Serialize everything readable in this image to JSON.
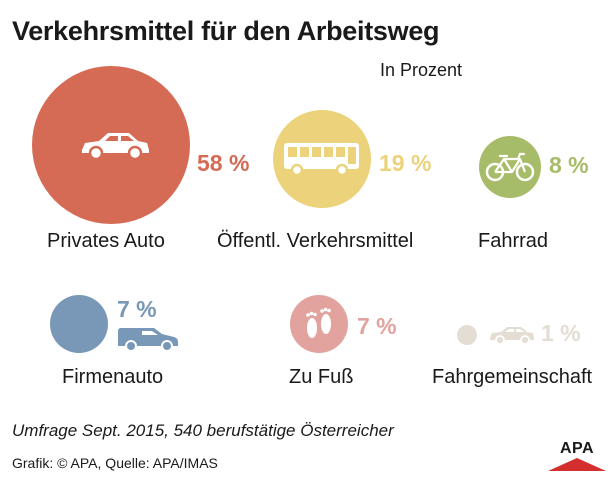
{
  "title": "Verkehrsmittel für den Arbeitsweg",
  "subtitle": "In Prozent",
  "colors": {
    "privates_auto": "#d66b55",
    "oeffentlich": "#ecd27a",
    "fahrrad": "#a7bc68",
    "firmenauto": "#7997b7",
    "zu_fuss": "#e2a39e",
    "fahrgemeinschaft": "#e3ddd3",
    "icon": "#ffffff"
  },
  "chart_data": {
    "type": "bubble",
    "title": "Verkehrsmittel für den Arbeitsweg",
    "subtitle": "In Prozent",
    "unit": "%",
    "categories": [
      "Privates Auto",
      "Öffentl. Verkehrsmittel",
      "Fahrrad",
      "Firmenauto",
      "Zu Fuß",
      "Fahrgemeinschaft"
    ],
    "values": [
      58,
      19,
      8,
      7,
      7,
      1
    ],
    "value_labels": [
      "58 %",
      "19 %",
      "8 %",
      "7 %",
      "7 %",
      "1 %"
    ],
    "icons": [
      "car-icon",
      "bus-icon",
      "bicycle-icon",
      "van-icon",
      "footprints-icon",
      "car-icon"
    ]
  },
  "footnote": "Umfrage Sept. 2015, 540 berufstätige Österreicher",
  "source": "Grafik: © APA, Quelle: APA/IMAS",
  "logo_text": "APA"
}
